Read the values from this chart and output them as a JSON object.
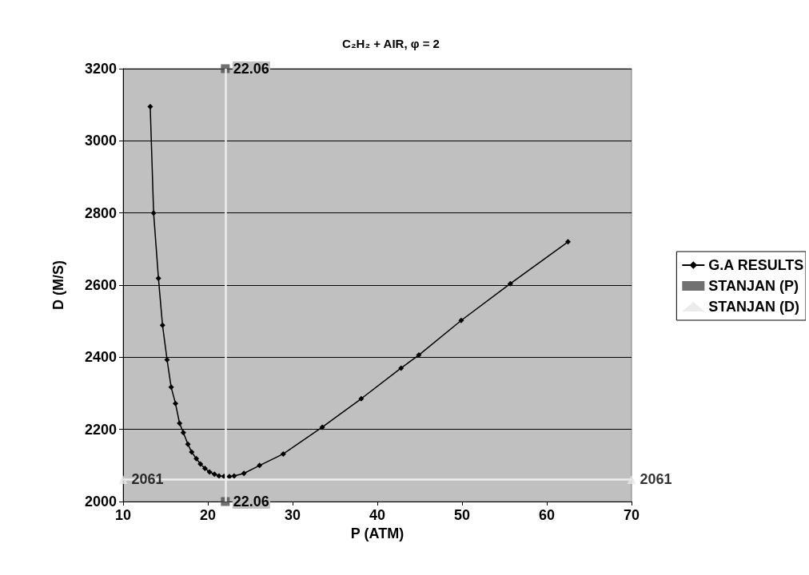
{
  "chart_data": {
    "type": "line",
    "title": "C₂H₂ + AIR, φ = 2",
    "xlabel": "P (ATM)",
    "ylabel": "D (M/S)",
    "xlim": [
      10,
      70
    ],
    "xticks": [
      10,
      20,
      30,
      40,
      50,
      60,
      70
    ],
    "ylim": [
      2000,
      3200
    ],
    "yticks": [
      2000,
      2200,
      2400,
      2600,
      2800,
      3000,
      3200
    ],
    "grid": "y",
    "legend": "right",
    "series": [
      {
        "name": "G.A RESULTS",
        "color": "#000000",
        "marker": "diamond",
        "line_style": "solid",
        "x": [
          13.2,
          13.6,
          14.17,
          14.65,
          15.19,
          15.67,
          16.18,
          16.66,
          17.11,
          17.65,
          18.09,
          18.64,
          19.12,
          19.66,
          20.2,
          20.78,
          21.32,
          21.9,
          22.54,
          23.11,
          24.26,
          26.1,
          28.9,
          33.5,
          38.1,
          42.8,
          44.9,
          49.9,
          55.7,
          62.5
        ],
        "values": [
          3095,
          2800,
          2619,
          2489,
          2393,
          2317,
          2272,
          2217,
          2191,
          2159,
          2137,
          2119,
          2104,
          2092,
          2082,
          2076,
          2071,
          2070,
          2069,
          2071,
          2078,
          2100,
          2132,
          2206,
          2285,
          2370,
          2406,
          2502,
          2604,
          2720
        ]
      },
      {
        "name": "STANJAN (P)",
        "type": "scatter",
        "color": "#4d4d4d",
        "marker": "square",
        "x": [
          22.06,
          22.06
        ],
        "values": [
          3200,
          2000
        ]
      },
      {
        "name": "STANJAN (D)",
        "type": "scatter",
        "color": "#e6e6e6",
        "marker": "triangle",
        "x": [
          10,
          70
        ],
        "values": [
          2061,
          2061
        ],
        "value_labels": [
          "2061",
          "2061"
        ]
      }
    ],
    "annotations": [
      {
        "text": "22.06",
        "x": 22.06,
        "y": 3200
      },
      {
        "text": "22.06",
        "x": 22.06,
        "y": 2000
      }
    ],
    "ref_lines": [
      {
        "axis": "x",
        "value": 22.06,
        "color": "#eeeeee"
      },
      {
        "axis": "y",
        "value": 2061,
        "color": "#eeeeee"
      }
    ]
  }
}
